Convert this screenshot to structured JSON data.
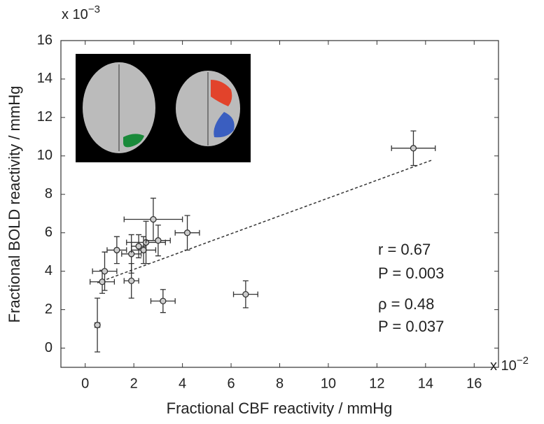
{
  "chart_data": {
    "type": "scatter",
    "x_label": "Fractional CBF reactivity / mmHg",
    "y_label": "Fractional BOLD reactivity / mmHg",
    "x_multiplier": {
      "base": "x 10",
      "exponent": "−2"
    },
    "y_multiplier": {
      "base": "x 10",
      "exponent": "−3"
    },
    "xlim": [
      -1,
      17
    ],
    "ylim": [
      -1,
      16
    ],
    "xticks": [
      0,
      2,
      4,
      6,
      8,
      10,
      12,
      14,
      16
    ],
    "yticks": [
      0,
      2,
      4,
      6,
      8,
      10,
      12,
      14,
      16
    ],
    "series": [
      {
        "color": "#333333",
        "x": [
          13.5,
          0.5,
          0.7,
          0.8,
          1.3,
          1.9,
          1.9,
          2.2,
          2.4,
          2.5,
          2.8,
          3.0,
          3.2,
          4.2,
          6.6
        ],
        "values": [
          10.4,
          1.2,
          3.45,
          4.0,
          5.1,
          3.5,
          4.9,
          5.3,
          5.1,
          5.5,
          6.7,
          5.6,
          2.45,
          6.0,
          2.8
        ],
        "xerr": [
          0.9,
          0.1,
          0.5,
          0.5,
          0.4,
          0.3,
          0.4,
          0.3,
          0.5,
          0.8,
          1.2,
          0.5,
          0.5,
          0.5,
          0.5
        ],
        "yerr": [
          0.9,
          1.4,
          0.6,
          1.0,
          0.7,
          0.9,
          1.0,
          0.6,
          0.7,
          1.1,
          1.1,
          0.8,
          0.6,
          0.9,
          0.7
        ]
      }
    ],
    "fit_line": {
      "x": [
        0.5,
        14.3
      ],
      "y": [
        3.4,
        9.8
      ]
    },
    "annotations": [
      "r = 0.67",
      "P = 0.003",
      "ρ = 0.48",
      "P = 0.037"
    ]
  }
}
